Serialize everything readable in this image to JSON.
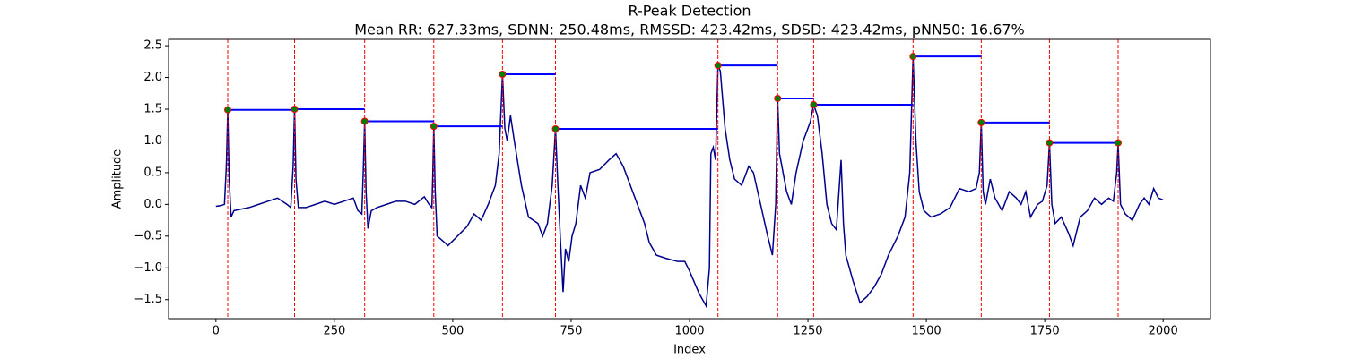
{
  "chart_data": {
    "type": "line",
    "title": "R-Peak Detection",
    "subtitle": "Mean RR: 627.33ms, SDNN: 250.48ms, RMSSD: 423.42ms, SDSD: 423.42ms, pNN50: 16.67%",
    "xlabel": "Index",
    "ylabel": "Amplitude",
    "xlim": [
      -100,
      2100
    ],
    "ylim": [
      -1.8,
      2.6
    ],
    "xticks": [
      0,
      250,
      500,
      750,
      1000,
      1250,
      1500,
      1750,
      2000
    ],
    "yticks": [
      {
        "value": -1.5,
        "label": "−1.5"
      },
      {
        "value": -1.0,
        "label": "−1.0"
      },
      {
        "value": -0.5,
        "label": "−0.5"
      },
      {
        "value": 0.0,
        "label": "0.0"
      },
      0.5,
      {
        "value": 1.0,
        "label": "1.0"
      },
      1.5,
      {
        "value": 2.0,
        "label": "2.0"
      },
      2.5
    ],
    "series": [
      {
        "color": "#00008b",
        "x": [
          0,
          10,
          18,
          22,
          25,
          28,
          32,
          38,
          50,
          70,
          90,
          110,
          130,
          140,
          150,
          158,
          163,
          166,
          169,
          174,
          190,
          210,
          230,
          250,
          270,
          290,
          300,
          308,
          311,
          314,
          317,
          321,
          328,
          340,
          360,
          380,
          400,
          420,
          440,
          450,
          456,
          458,
          460,
          463,
          467,
          475,
          490,
          510,
          530,
          545,
          560,
          575,
          590,
          598,
          605,
          610,
          615,
          622,
          630,
          645,
          660,
          680,
          690,
          700,
          710,
          717,
          722,
          727,
          733,
          738,
          745,
          752,
          760,
          770,
          780,
          790,
          810,
          830,
          845,
          860,
          875,
          890,
          905,
          915,
          930,
          950,
          975,
          990,
          1000,
          1020,
          1035,
          1042,
          1045,
          1050,
          1055,
          1060,
          1065,
          1075,
          1085,
          1095,
          1110,
          1125,
          1135,
          1150,
          1165,
          1175,
          1182,
          1186,
          1190,
          1195,
          1205,
          1215,
          1225,
          1240,
          1255,
          1262,
          1270,
          1280,
          1290,
          1300,
          1310,
          1320,
          1325,
          1330,
          1345,
          1360,
          1375,
          1390,
          1405,
          1420,
          1440,
          1455,
          1465,
          1472,
          1478,
          1485,
          1495,
          1510,
          1530,
          1550,
          1570,
          1590,
          1605,
          1612,
          1616,
          1620,
          1625,
          1635,
          1645,
          1660,
          1675,
          1690,
          1700,
          1710,
          1720,
          1735,
          1745,
          1755,
          1760,
          1765,
          1772,
          1785,
          1800,
          1810,
          1825,
          1840,
          1855,
          1870,
          1885,
          1895,
          1902,
          1905,
          1910,
          1920,
          1935,
          1950,
          1960,
          1970,
          1980,
          1990,
          2000
        ],
        "values": [
          -0.03,
          -0.02,
          0.0,
          0.6,
          1.49,
          0.4,
          -0.2,
          -0.1,
          -0.08,
          -0.05,
          0.0,
          0.05,
          0.1,
          0.05,
          0.0,
          -0.05,
          0.6,
          1.5,
          0.4,
          -0.05,
          -0.05,
          0.0,
          0.05,
          0.0,
          0.05,
          0.1,
          -0.1,
          -0.15,
          0.5,
          1.31,
          0.2,
          -0.38,
          -0.1,
          -0.05,
          0.0,
          0.05,
          0.05,
          0.0,
          0.12,
          0.0,
          -0.05,
          0.5,
          1.23,
          0.2,
          -0.5,
          -0.55,
          -0.65,
          -0.5,
          -0.35,
          -0.15,
          -0.25,
          0.0,
          0.3,
          0.8,
          2.05,
          1.2,
          1.0,
          1.4,
          1.0,
          0.3,
          -0.2,
          -0.3,
          -0.5,
          -0.3,
          0.3,
          1.19,
          0.3,
          -0.5,
          -1.38,
          -0.7,
          -0.9,
          -0.5,
          -0.3,
          0.3,
          0.1,
          0.5,
          0.55,
          0.7,
          0.8,
          0.6,
          0.3,
          0.0,
          -0.3,
          -0.6,
          -0.8,
          -0.85,
          -0.9,
          -0.9,
          -1.05,
          -1.4,
          -1.6,
          -1.0,
          0.8,
          0.9,
          0.7,
          2.19,
          2.1,
          1.2,
          0.7,
          0.4,
          0.3,
          0.6,
          0.5,
          0.0,
          -0.5,
          -0.8,
          0.0,
          1.67,
          0.8,
          0.6,
          0.2,
          0.0,
          0.5,
          1.0,
          1.3,
          1.57,
          1.4,
          0.8,
          0.0,
          -0.3,
          -0.4,
          0.7,
          -0.3,
          -0.8,
          -1.2,
          -1.55,
          -1.45,
          -1.3,
          -1.1,
          -0.8,
          -0.5,
          -0.2,
          0.5,
          2.33,
          1.0,
          0.2,
          -0.1,
          -0.2,
          -0.15,
          -0.05,
          0.25,
          0.2,
          0.25,
          0.5,
          1.29,
          0.2,
          0.0,
          0.4,
          0.1,
          -0.1,
          0.2,
          0.1,
          0.0,
          0.2,
          -0.2,
          0.0,
          0.05,
          0.3,
          0.97,
          0.0,
          -0.3,
          -0.2,
          -0.45,
          -0.65,
          -0.2,
          -0.1,
          0.1,
          0.0,
          0.1,
          0.05,
          0.5,
          0.97,
          0.0,
          -0.15,
          -0.25,
          0.0,
          0.1,
          0.0,
          0.25,
          0.1,
          0.07
        ]
      },
      {
        "color": "green",
        "edgecolor": "red",
        "vline_color": "red",
        "rr_color": "blue",
        "x": [
          25,
          166,
          314,
          460,
          605,
          717,
          1060,
          1186,
          1262,
          1472,
          1616,
          1760,
          1905
        ],
        "values": [
          1.49,
          1.5,
          1.31,
          1.23,
          2.05,
          1.19,
          2.19,
          1.67,
          1.57,
          2.33,
          1.29,
          0.97,
          0.97
        ]
      }
    ]
  }
}
